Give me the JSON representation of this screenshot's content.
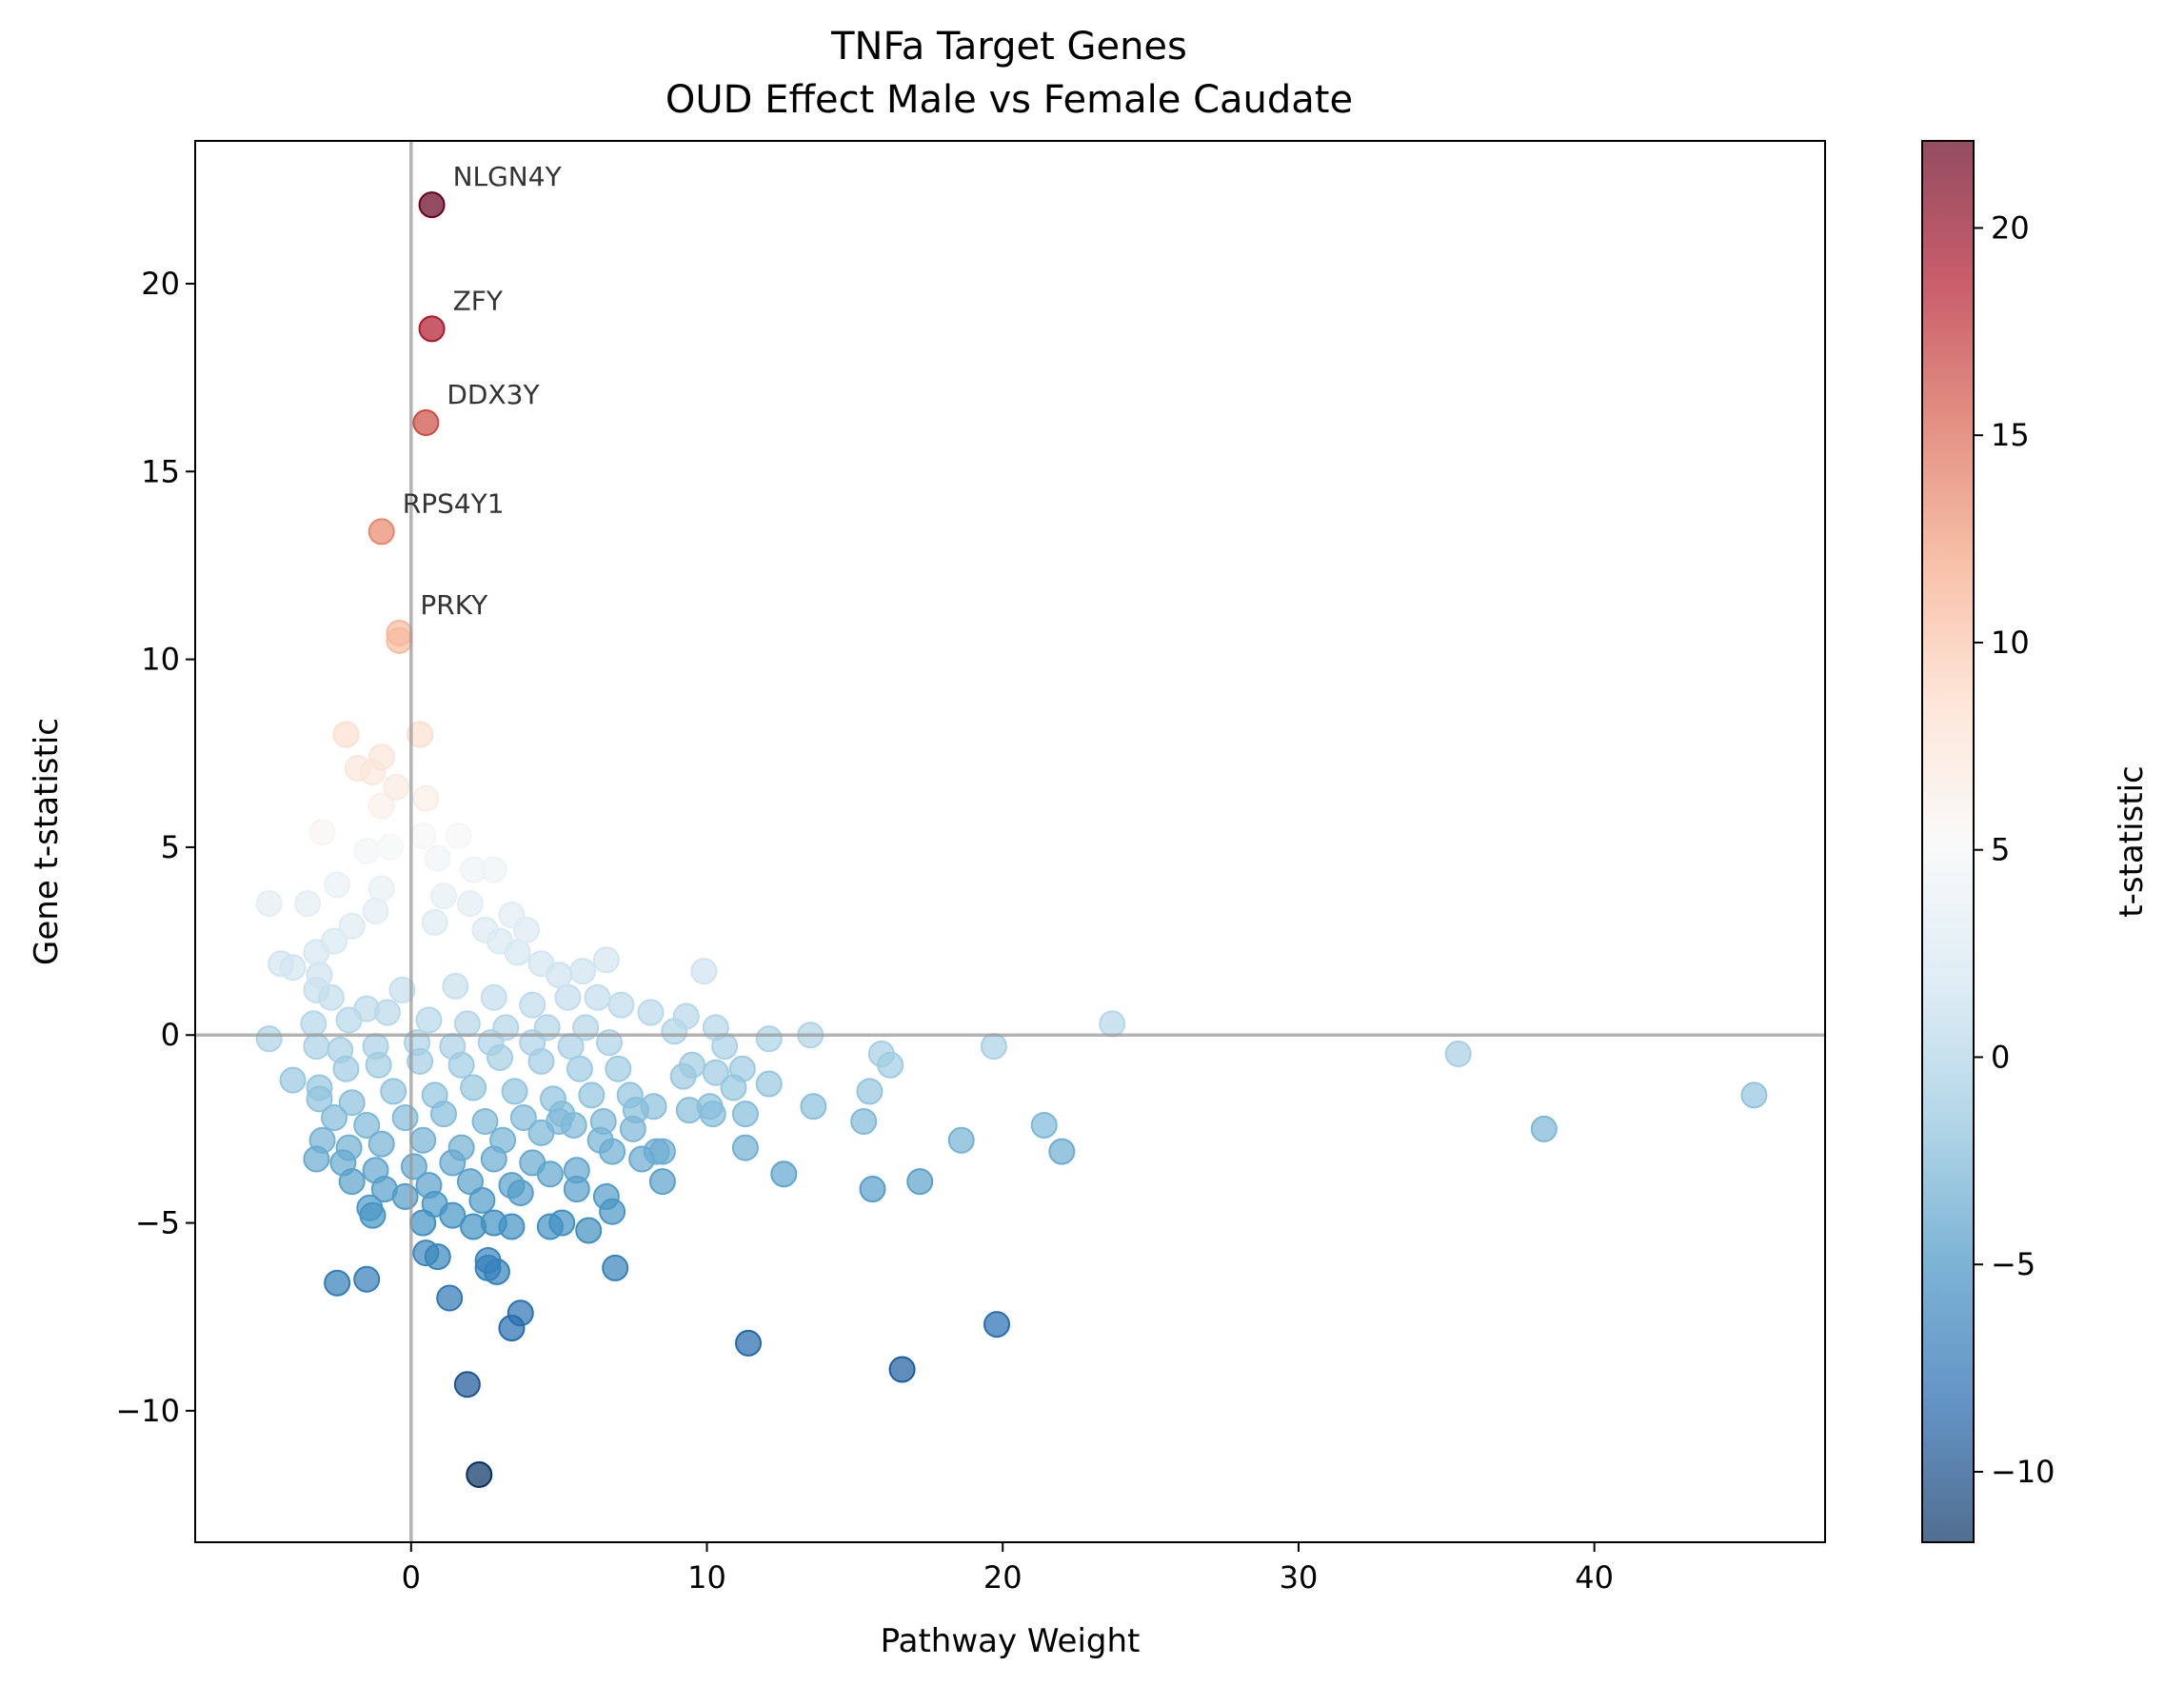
{
  "chart_data": {
    "type": "scatter",
    "title": "TNFa Target Genes",
    "subtitle": "OUD Effect Male vs Female Caudate",
    "xlabel": "Pathway Weight",
    "ylabel": "Gene t-statistic",
    "xlim": [
      -7.3,
      47.8
    ],
    "ylim": [
      -13.5,
      23.8
    ],
    "xticks": [
      0,
      10,
      20,
      30,
      40
    ],
    "yticks": [
      -10,
      -5,
      0,
      5,
      10,
      15,
      20
    ],
    "reference_lines": {
      "x": 0,
      "y": 0
    },
    "grid": false,
    "legend": "none",
    "colorbar": {
      "label": "t-statistic",
      "colormap": "RdBu_r",
      "range": [
        -11.7,
        22.1
      ],
      "ticks": [
        -10,
        -5,
        0,
        5,
        10,
        15,
        20
      ],
      "palette": [
        "#053061",
        "#2166ac",
        "#4393c3",
        "#92c5de",
        "#d1e5f0",
        "#f7f7f7",
        "#fddbc7",
        "#f4a582",
        "#d6604d",
        "#b2182b",
        "#67001f"
      ],
      "alpha": 0.7
    },
    "labeled_points": [
      {
        "label": "NLGN4Y",
        "x": 0.7,
        "y": 22.1
      },
      {
        "label": "ZFY",
        "x": 0.7,
        "y": 18.8
      },
      {
        "label": "DDX3Y",
        "x": 0.5,
        "y": 16.3
      },
      {
        "label": "RPS4Y1",
        "x": -1.0,
        "y": 13.4
      },
      {
        "label": "PRKY",
        "x": -0.4,
        "y": 10.7
      }
    ],
    "points": [
      [
        -0.4,
        10.5
      ],
      [
        -2.2,
        8.0
      ],
      [
        0.3,
        8.0
      ],
      [
        -1.8,
        7.1
      ],
      [
        -1.0,
        7.4
      ],
      [
        -1.3,
        7.0
      ],
      [
        -1.0,
        6.1
      ],
      [
        -0.5,
        6.6
      ],
      [
        0.5,
        6.3
      ],
      [
        -3.0,
        5.4
      ],
      [
        -1.5,
        4.9
      ],
      [
        0.4,
        5.3
      ],
      [
        1.6,
        5.3
      ],
      [
        -0.7,
        5.0
      ],
      [
        0.9,
        4.7
      ],
      [
        2.1,
        4.4
      ],
      [
        2.8,
        4.4
      ],
      [
        -4.8,
        3.5
      ],
      [
        -3.5,
        3.5
      ],
      [
        -2.5,
        4.0
      ],
      [
        -1.0,
        3.9
      ],
      [
        1.1,
        3.7
      ],
      [
        2.0,
        3.5
      ],
      [
        3.4,
        3.2
      ],
      [
        3.9,
        2.8
      ],
      [
        -4.4,
        1.9
      ],
      [
        -4.0,
        1.8
      ],
      [
        -3.1,
        1.6
      ],
      [
        -3.2,
        2.2
      ],
      [
        -2.6,
        2.5
      ],
      [
        -2.0,
        2.9
      ],
      [
        -1.2,
        3.3
      ],
      [
        0.8,
        3.0
      ],
      [
        2.5,
        2.8
      ],
      [
        3.0,
        2.5
      ],
      [
        3.6,
        2.2
      ],
      [
        4.4,
        1.9
      ],
      [
        5.0,
        1.6
      ],
      [
        5.8,
        1.7
      ],
      [
        6.6,
        2.0
      ],
      [
        9.9,
        1.7
      ],
      [
        -3.2,
        1.2
      ],
      [
        -2.7,
        1.0
      ],
      [
        -1.5,
        0.7
      ],
      [
        -0.3,
        1.2
      ],
      [
        1.5,
        1.3
      ],
      [
        2.8,
        1.0
      ],
      [
        4.1,
        0.8
      ],
      [
        5.3,
        1.0
      ],
      [
        6.3,
        1.0
      ],
      [
        7.1,
        0.8
      ],
      [
        8.1,
        0.6
      ],
      [
        -4.8,
        -0.1
      ],
      [
        -3.3,
        0.3
      ],
      [
        -2.1,
        0.4
      ],
      [
        -0.8,
        0.6
      ],
      [
        0.6,
        0.4
      ],
      [
        1.9,
        0.3
      ],
      [
        3.2,
        0.2
      ],
      [
        4.6,
        0.2
      ],
      [
        5.9,
        0.2
      ],
      [
        9.3,
        0.5
      ],
      [
        10.3,
        0.2
      ],
      [
        23.7,
        0.3
      ],
      [
        -3.2,
        -0.3
      ],
      [
        -2.4,
        -0.4
      ],
      [
        -1.2,
        -0.3
      ],
      [
        0.2,
        -0.2
      ],
      [
        1.4,
        -0.3
      ],
      [
        2.7,
        -0.2
      ],
      [
        4.1,
        -0.2
      ],
      [
        5.4,
        -0.3
      ],
      [
        6.7,
        -0.2
      ],
      [
        8.9,
        0.1
      ],
      [
        10.6,
        -0.3
      ],
      [
        12.1,
        -0.1
      ],
      [
        13.5,
        0.0
      ],
      [
        15.9,
        -0.5
      ],
      [
        19.7,
        -0.3
      ],
      [
        35.4,
        -0.5
      ],
      [
        -4.0,
        -1.2
      ],
      [
        -3.1,
        -1.4
      ],
      [
        -2.2,
        -0.9
      ],
      [
        -1.1,
        -0.8
      ],
      [
        0.3,
        -0.7
      ],
      [
        1.7,
        -0.8
      ],
      [
        3.0,
        -0.6
      ],
      [
        4.4,
        -0.7
      ],
      [
        5.7,
        -0.9
      ],
      [
        7.0,
        -0.9
      ],
      [
        9.5,
        -0.8
      ],
      [
        10.3,
        -1.0
      ],
      [
        11.2,
        -0.9
      ],
      [
        16.2,
        -0.8
      ],
      [
        45.4,
        -1.6
      ],
      [
        -3.1,
        -1.7
      ],
      [
        -2.0,
        -1.8
      ],
      [
        -0.6,
        -1.5
      ],
      [
        0.8,
        -1.6
      ],
      [
        2.1,
        -1.4
      ],
      [
        3.5,
        -1.5
      ],
      [
        4.8,
        -1.7
      ],
      [
        6.1,
        -1.6
      ],
      [
        7.4,
        -1.6
      ],
      [
        9.2,
        -1.1
      ],
      [
        10.9,
        -1.4
      ],
      [
        12.1,
        -1.3
      ],
      [
        15.5,
        -1.5
      ],
      [
        -2.6,
        -2.2
      ],
      [
        -1.5,
        -2.4
      ],
      [
        -0.2,
        -2.2
      ],
      [
        1.1,
        -2.1
      ],
      [
        2.5,
        -2.3
      ],
      [
        3.8,
        -2.2
      ],
      [
        5.1,
        -2.1
      ],
      [
        6.5,
        -2.3
      ],
      [
        7.6,
        -2.0
      ],
      [
        8.2,
        -1.9
      ],
      [
        9.4,
        -2.0
      ],
      [
        10.2,
        -2.1
      ],
      [
        11.3,
        -2.1
      ],
      [
        13.6,
        -1.9
      ],
      [
        -3.0,
        -2.8
      ],
      [
        -2.1,
        -3.0
      ],
      [
        -1.0,
        -2.9
      ],
      [
        0.4,
        -2.8
      ],
      [
        1.7,
        -3.0
      ],
      [
        3.1,
        -2.8
      ],
      [
        4.4,
        -2.6
      ],
      [
        5.0,
        -2.3
      ],
      [
        5.5,
        -2.4
      ],
      [
        6.4,
        -2.8
      ],
      [
        7.5,
        -2.5
      ],
      [
        10.1,
        -1.9
      ],
      [
        15.3,
        -2.3
      ],
      [
        21.4,
        -2.4
      ],
      [
        38.3,
        -2.5
      ],
      [
        -3.2,
        -3.3
      ],
      [
        -2.3,
        -3.4
      ],
      [
        -1.2,
        -3.6
      ],
      [
        0.1,
        -3.5
      ],
      [
        1.4,
        -3.4
      ],
      [
        2.8,
        -3.3
      ],
      [
        4.1,
        -3.4
      ],
      [
        6.8,
        -3.1
      ],
      [
        7.8,
        -3.3
      ],
      [
        8.5,
        -3.1
      ],
      [
        11.3,
        -3.0
      ],
      [
        18.6,
        -2.8
      ],
      [
        22.0,
        -3.1
      ],
      [
        -2.0,
        -3.9
      ],
      [
        -0.9,
        -4.1
      ],
      [
        0.6,
        -4.0
      ],
      [
        2.0,
        -3.9
      ],
      [
        3.4,
        -4.0
      ],
      [
        4.7,
        -3.7
      ],
      [
        5.6,
        -3.6
      ],
      [
        8.3,
        -3.1
      ],
      [
        12.6,
        -3.7
      ],
      [
        -1.4,
        -4.6
      ],
      [
        -0.2,
        -4.3
      ],
      [
        0.8,
        -4.5
      ],
      [
        2.4,
        -4.4
      ],
      [
        3.7,
        -4.2
      ],
      [
        5.6,
        -4.1
      ],
      [
        6.6,
        -4.3
      ],
      [
        8.5,
        -3.9
      ],
      [
        15.6,
        -4.1
      ],
      [
        17.2,
        -3.9
      ],
      [
        -1.3,
        -4.8
      ],
      [
        0.4,
        -5.0
      ],
      [
        1.4,
        -4.8
      ],
      [
        2.1,
        -5.1
      ],
      [
        2.8,
        -5.0
      ],
      [
        3.4,
        -5.1
      ],
      [
        4.7,
        -5.1
      ],
      [
        5.1,
        -5.0
      ],
      [
        6.0,
        -5.2
      ],
      [
        6.8,
        -4.7
      ],
      [
        0.5,
        -5.8
      ],
      [
        0.9,
        -5.9
      ],
      [
        2.6,
        -6.0
      ],
      [
        2.6,
        -6.2
      ],
      [
        2.9,
        -6.3
      ],
      [
        6.9,
        -6.2
      ],
      [
        -2.5,
        -6.6
      ],
      [
        -1.5,
        -6.5
      ],
      [
        1.3,
        -7.0
      ],
      [
        3.7,
        -7.4
      ],
      [
        3.4,
        -7.8
      ],
      [
        19.8,
        -7.7
      ],
      [
        11.4,
        -8.2
      ],
      [
        16.6,
        -8.9
      ],
      [
        1.9,
        -9.3
      ],
      [
        2.3,
        -11.7
      ]
    ]
  }
}
